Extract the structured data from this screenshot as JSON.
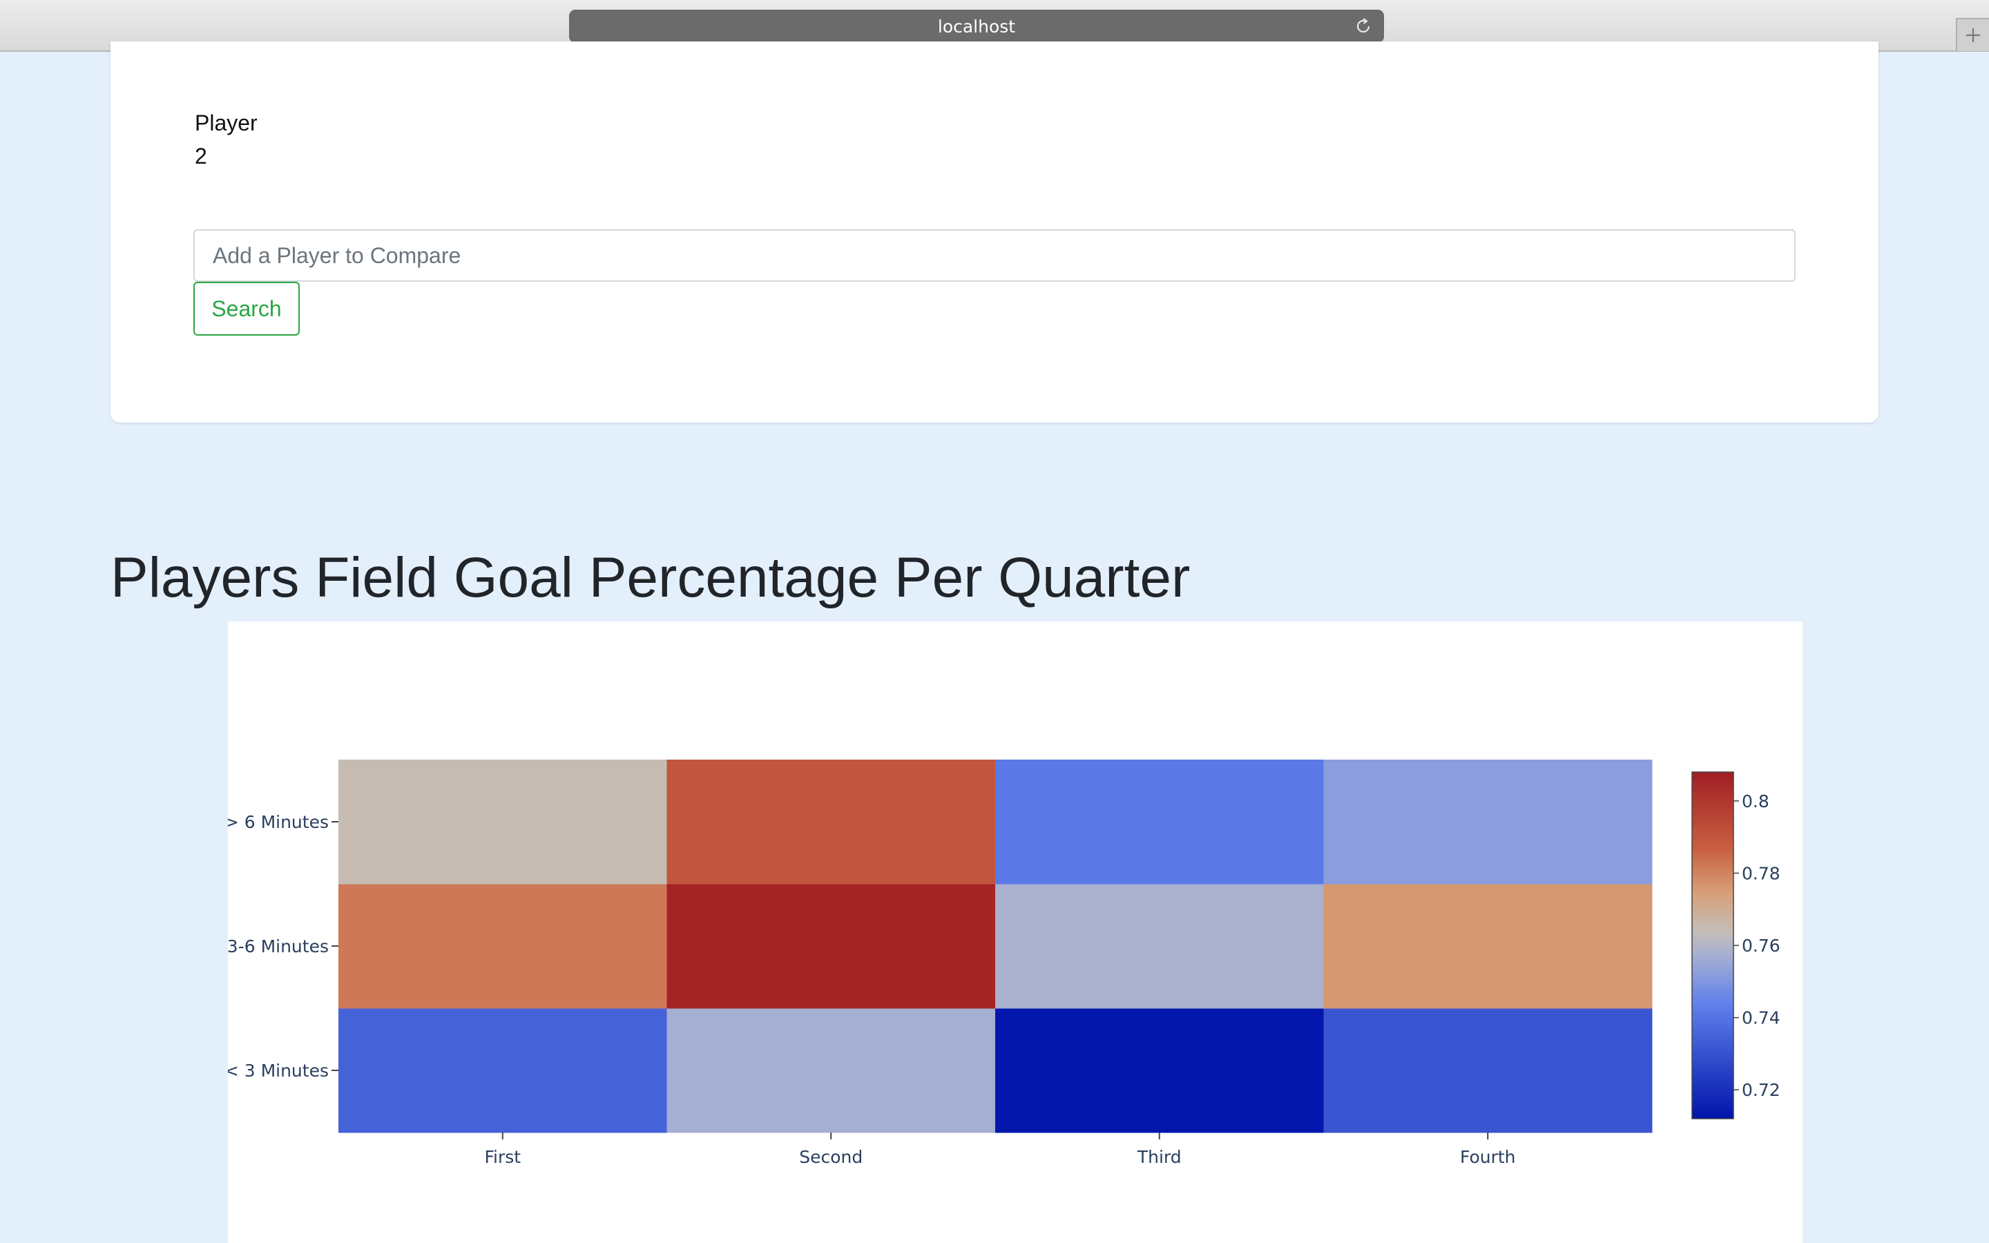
{
  "browser": {
    "url": "localhost"
  },
  "card": {
    "player_label": "Player",
    "player_value": "2",
    "search_placeholder": "Add a Player to Compare",
    "search_button": "Search"
  },
  "heading": "Players Field Goal Percentage Per Quarter",
  "chart_data": {
    "type": "heatmap",
    "title": "",
    "xlabel": "",
    "ylabel": "",
    "x": [
      "First",
      "Second",
      "Third",
      "Fourth"
    ],
    "y": [
      "< 3 Minutes",
      "3-6 Minutes",
      "> 6 Minutes"
    ],
    "z": [
      [
        0.735,
        0.757,
        0.713,
        0.731
      ],
      [
        0.782,
        0.806,
        0.758,
        0.776
      ],
      [
        0.765,
        0.79,
        0.742,
        0.752
      ]
    ],
    "colorscale": "RdBu (reversed)",
    "zlim": [
      0.712,
      0.808
    ],
    "colorbar_ticks": [
      0.72,
      0.74,
      0.76,
      0.78,
      0.8
    ],
    "colorbar_labels": [
      "0.72",
      "0.74",
      "0.76",
      "0.78",
      "0.8"
    ]
  }
}
